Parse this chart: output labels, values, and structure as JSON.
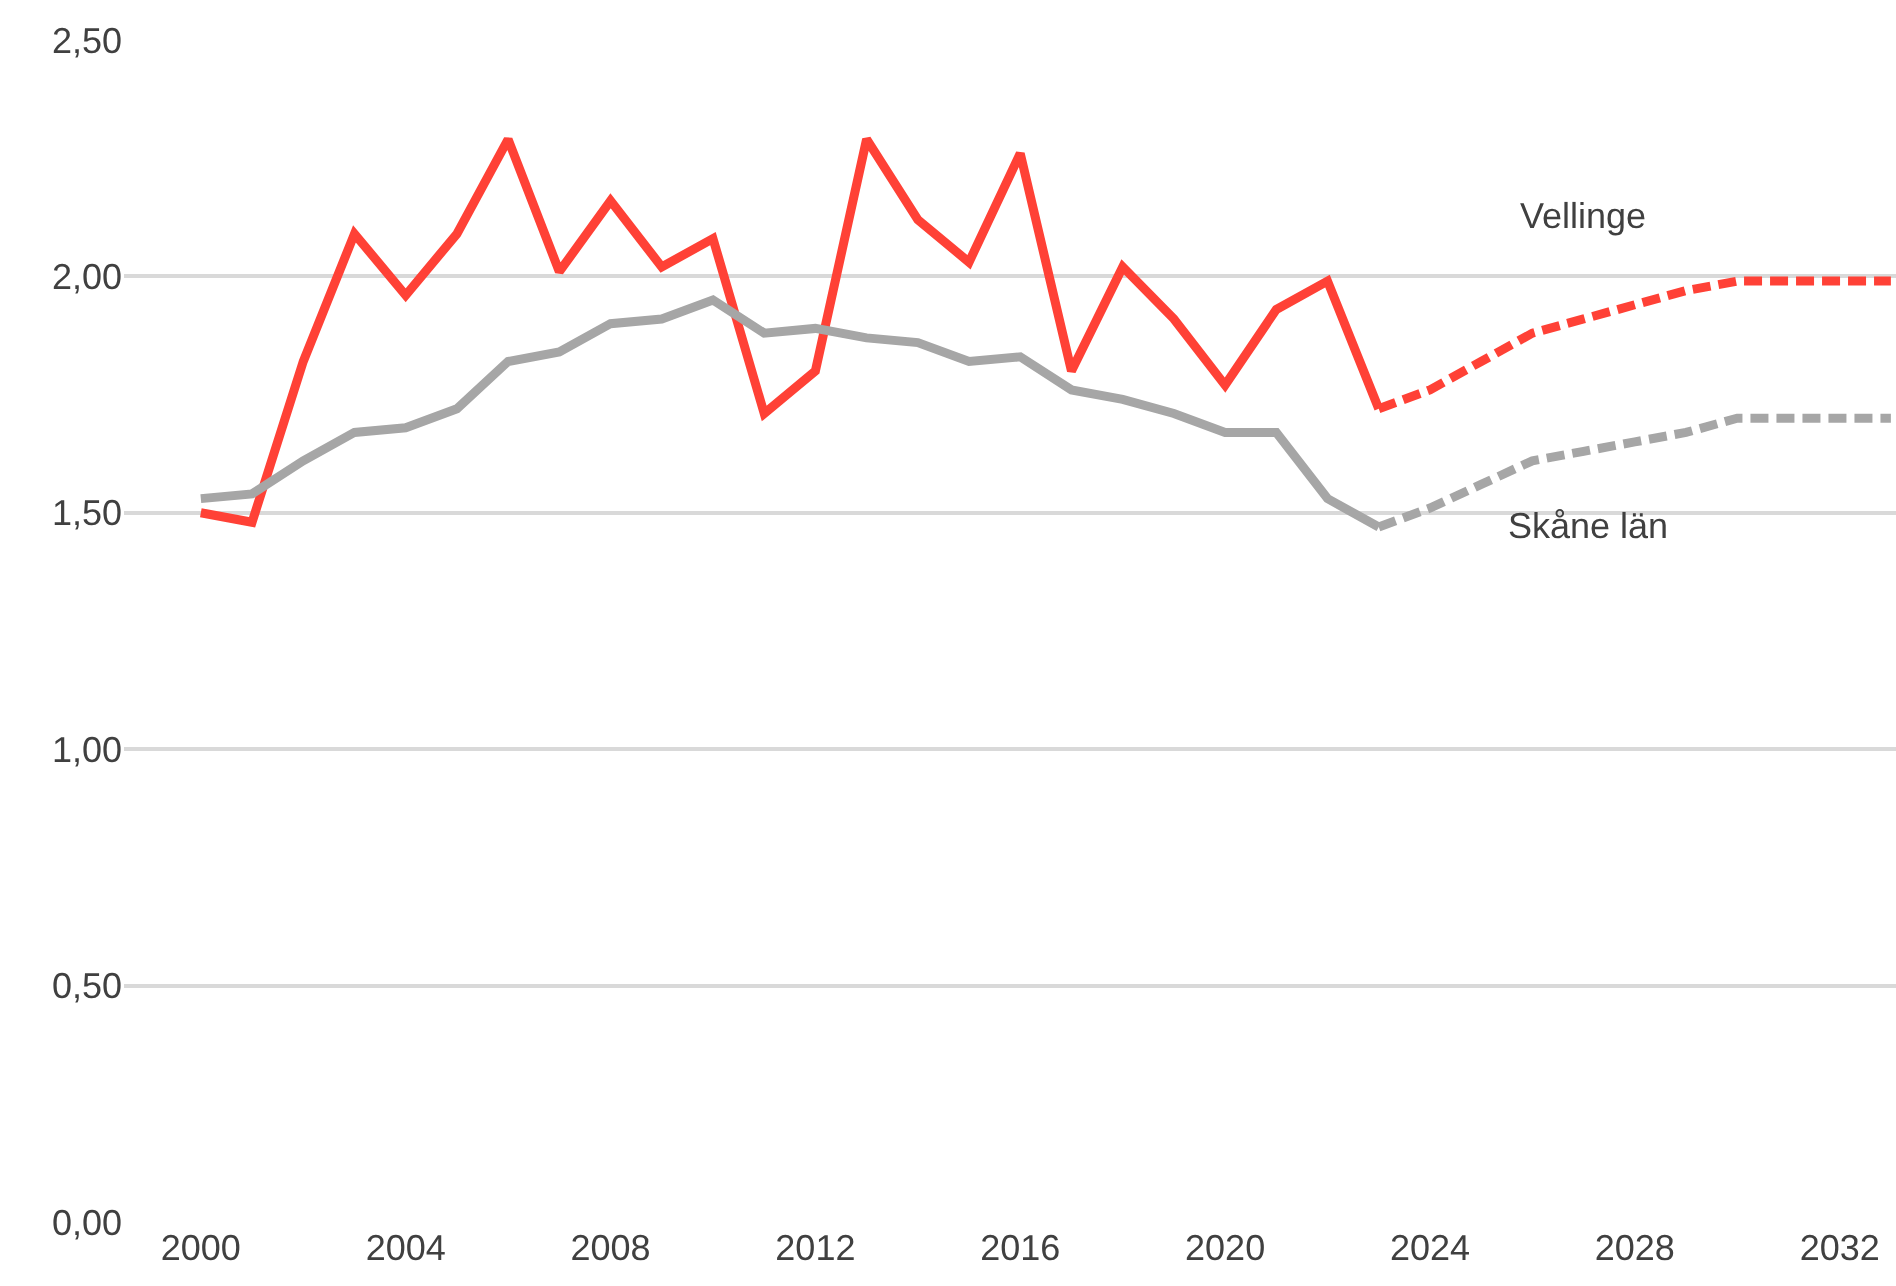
{
  "chart_data": {
    "type": "line",
    "series": [
      {
        "name": "Vellinge",
        "color": "#ff4136",
        "line_style": "solid",
        "x": [
          2000,
          2001,
          2002,
          2003,
          2004,
          2005,
          2006,
          2007,
          2008,
          2009,
          2010,
          2011,
          2012,
          2013,
          2014,
          2015,
          2016,
          2017,
          2018,
          2019,
          2020,
          2021,
          2022,
          2023
        ],
        "values": [
          1.5,
          1.48,
          1.82,
          2.09,
          1.96,
          2.09,
          2.29,
          2.01,
          2.16,
          2.02,
          2.08,
          1.71,
          1.8,
          2.29,
          2.12,
          2.03,
          2.26,
          1.8,
          2.02,
          1.91,
          1.77,
          1.93,
          1.99,
          1.72
        ]
      },
      {
        "name": "Skåne län",
        "color": "#a6a6a6",
        "line_style": "solid",
        "x": [
          2000,
          2001,
          2002,
          2003,
          2004,
          2005,
          2006,
          2007,
          2008,
          2009,
          2010,
          2011,
          2012,
          2013,
          2014,
          2015,
          2016,
          2017,
          2018,
          2019,
          2020,
          2021,
          2022,
          2023
        ],
        "values": [
          1.53,
          1.54,
          1.61,
          1.67,
          1.68,
          1.72,
          1.82,
          1.84,
          1.9,
          1.91,
          1.95,
          1.88,
          1.89,
          1.87,
          1.86,
          1.82,
          1.83,
          1.76,
          1.74,
          1.71,
          1.67,
          1.67,
          1.53,
          1.47
        ]
      },
      {
        "color": "#ff4136",
        "line_style": "dashed",
        "x": [
          2023,
          2024,
          2025,
          2026,
          2027,
          2028,
          2029,
          2030,
          2031,
          2032,
          2033
        ],
        "values": [
          1.72,
          1.76,
          1.82,
          1.88,
          1.91,
          1.94,
          1.97,
          1.99,
          1.99,
          1.99,
          1.99
        ]
      },
      {
        "color": "#a6a6a6",
        "line_style": "dashed",
        "x": [
          2023,
          2024,
          2025,
          2026,
          2027,
          2028,
          2029,
          2030,
          2031,
          2032,
          2033
        ],
        "values": [
          1.47,
          1.51,
          1.56,
          1.61,
          1.63,
          1.65,
          1.67,
          1.7,
          1.7,
          1.7,
          1.7
        ]
      }
    ],
    "xlim": [
      1998.5,
      2033.1
    ],
    "xticks": [
      2000,
      2004,
      2008,
      2012,
      2016,
      2020,
      2024,
      2028,
      2032
    ],
    "ylim": [
      0,
      2.5
    ],
    "yticks": [
      {
        "value": 0,
        "label": "0,00"
      },
      {
        "value": 0.5,
        "label": "0,50"
      },
      {
        "value": 1.0,
        "label": "1,00"
      },
      {
        "value": 1.5,
        "label": "1,50"
      },
      {
        "value": 2.0,
        "label": "2,00"
      },
      {
        "value": 2.5,
        "label": "2,50"
      }
    ],
    "grid": "y",
    "legend": false,
    "marker": "none"
  }
}
